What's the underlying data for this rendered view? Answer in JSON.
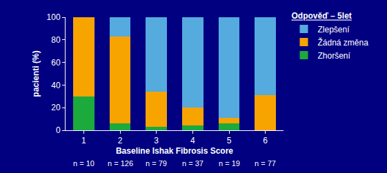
{
  "chart_data": {
    "type": "bar",
    "stacked": true,
    "x_label": "Baseline Ishak Fibrosis Score",
    "y_label": "pacienti (%)",
    "categories": [
      "1",
      "2",
      "3",
      "4",
      "5",
      "6"
    ],
    "series": [
      {
        "name": "Zlepšení",
        "color": "#55aade",
        "values": [
          0,
          17,
          66,
          80,
          89,
          69
        ]
      },
      {
        "name": "Žádná změna",
        "color": "#f7a300",
        "values": [
          70,
          77,
          31,
          16,
          5,
          31
        ]
      },
      {
        "name": "Zhoršení",
        "color": "#1caa3c",
        "values": [
          30,
          6,
          3,
          4,
          6,
          0
        ]
      }
    ],
    "ylim": [
      0,
      100
    ],
    "yticks": [
      0,
      20,
      40,
      60,
      80,
      100
    ],
    "grid": false,
    "legend": "right",
    "legend_title": "Odpověď – 5let",
    "annotations": [
      {
        "category": "1",
        "text": "n = 10"
      },
      {
        "category": "2",
        "text": "n = 126"
      },
      {
        "category": "3",
        "text": "n = 79"
      },
      {
        "category": "4",
        "text": "n = 37"
      },
      {
        "category": "5",
        "text": "n = 19"
      },
      {
        "category": "6",
        "text": "n = 77"
      }
    ]
  }
}
